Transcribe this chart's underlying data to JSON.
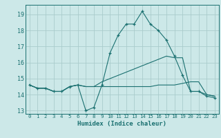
{
  "title": "",
  "xlabel": "Humidex (Indice chaleur)",
  "bg_color": "#cce8e8",
  "grid_color": "#aacccc",
  "line_color": "#1a7070",
  "xlim": [
    -0.5,
    23.5
  ],
  "ylim": [
    12.8,
    19.6
  ],
  "yticks": [
    13,
    14,
    15,
    16,
    17,
    18,
    19
  ],
  "xticks": [
    0,
    1,
    2,
    3,
    4,
    5,
    6,
    7,
    8,
    9,
    10,
    11,
    12,
    13,
    14,
    15,
    16,
    17,
    18,
    19,
    20,
    21,
    22,
    23
  ],
  "series1_x": [
    0,
    1,
    2,
    3,
    4,
    5,
    6,
    7,
    8,
    9,
    10,
    11,
    12,
    13,
    14,
    15,
    16,
    17,
    18,
    19,
    20,
    21,
    22,
    23
  ],
  "series1_y": [
    14.6,
    14.4,
    14.4,
    14.2,
    14.2,
    14.5,
    14.6,
    13.0,
    13.2,
    14.6,
    16.6,
    17.7,
    18.4,
    18.4,
    19.2,
    18.4,
    18.0,
    17.4,
    16.4,
    15.2,
    14.2,
    14.2,
    13.9,
    13.8
  ],
  "series2_x": [
    0,
    1,
    2,
    3,
    4,
    5,
    6,
    7,
    8,
    9,
    10,
    11,
    12,
    13,
    14,
    15,
    16,
    17,
    18,
    19,
    20,
    21,
    22,
    23
  ],
  "series2_y": [
    14.6,
    14.4,
    14.4,
    14.2,
    14.2,
    14.5,
    14.6,
    14.5,
    14.5,
    14.5,
    14.5,
    14.5,
    14.5,
    14.5,
    14.5,
    14.5,
    14.6,
    14.6,
    14.6,
    14.7,
    14.8,
    14.8,
    14.0,
    13.9
  ],
  "series3_x": [
    0,
    1,
    2,
    3,
    4,
    5,
    6,
    7,
    8,
    9,
    10,
    11,
    12,
    13,
    14,
    15,
    16,
    17,
    18,
    19,
    20,
    21,
    22,
    23
  ],
  "series3_y": [
    14.6,
    14.4,
    14.4,
    14.2,
    14.2,
    14.5,
    14.6,
    14.5,
    14.5,
    14.8,
    15.0,
    15.2,
    15.4,
    15.6,
    15.8,
    16.0,
    16.2,
    16.4,
    16.3,
    16.3,
    14.2,
    14.2,
    14.0,
    13.9
  ]
}
